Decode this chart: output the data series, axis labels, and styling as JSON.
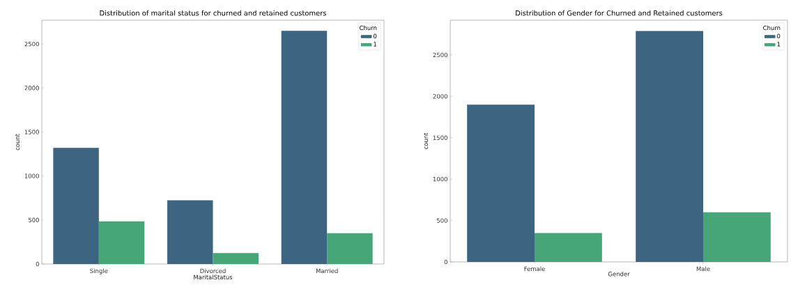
{
  "chart_data": [
    {
      "type": "bar",
      "title": "Distribution of marital status for churned and retained customers",
      "xlabel": "MaritalStatus",
      "ylabel": "count",
      "legend_title": "Churn",
      "legend": "top right",
      "categories": [
        "Single",
        "Divorced",
        "Married"
      ],
      "ylim": [
        0,
        2770
      ],
      "yticks": [
        0,
        500,
        1000,
        1500,
        2000,
        2500
      ],
      "series": [
        {
          "name": "0",
          "color": "#3d6480",
          "values": [
            1320,
            725,
            2650
          ]
        },
        {
          "name": "1",
          "color": "#47a677",
          "values": [
            485,
            125,
            350
          ]
        }
      ]
    },
    {
      "type": "bar",
      "title": "Distribution of Gender for Churned and Retained customers",
      "xlabel": "Gender",
      "ylabel": "count",
      "legend_title": "Churn",
      "legend": "top right",
      "categories": [
        "Female",
        "Male"
      ],
      "ylim": [
        0,
        2920
      ],
      "yticks": [
        0,
        500,
        1000,
        1500,
        2000,
        2500
      ],
      "series": [
        {
          "name": "0",
          "color": "#3d6480",
          "values": [
            1900,
            2790
          ]
        },
        {
          "name": "1",
          "color": "#47a677",
          "values": [
            350,
            600
          ]
        }
      ]
    }
  ]
}
